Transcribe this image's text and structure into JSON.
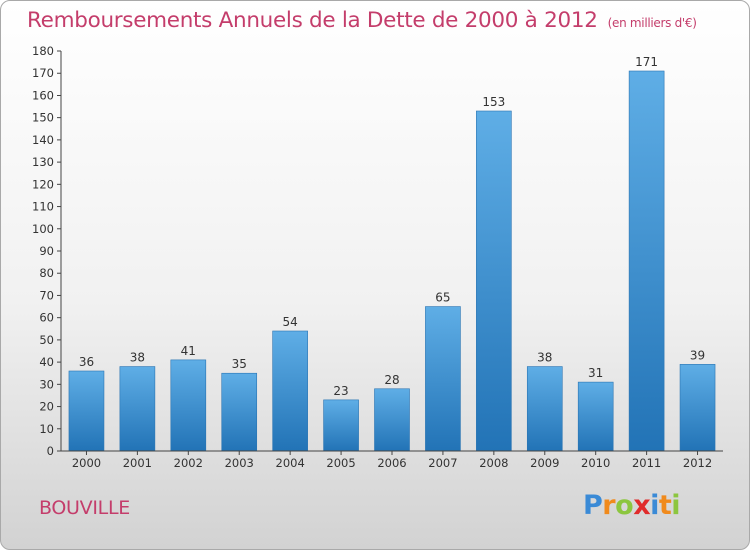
{
  "title": "Remboursements Annuels de la Dette de 2000 à 2012",
  "unit_label": "(en milliers d'€)",
  "location": "BOUVILLE",
  "brand": {
    "letters": [
      "P",
      "r",
      "o",
      "x",
      "i",
      "t",
      "i"
    ],
    "colors": [
      "#3a8ad6",
      "#f08a1c",
      "#8cc63f",
      "#e02b2b",
      "#3a8ad6",
      "#f08a1c",
      "#8cc63f"
    ]
  },
  "colors": {
    "bar_top": "#5faee6",
    "bar_bottom": "#2273b6",
    "accent": "#c43d6b"
  },
  "chart_data": {
    "type": "bar",
    "title": "Remboursements Annuels de la Dette de 2000 à 2012",
    "ylabel": "(en milliers d'€)",
    "xlabel": "",
    "categories": [
      "2000",
      "2001",
      "2002",
      "2003",
      "2004",
      "2005",
      "2006",
      "2007",
      "2008",
      "2009",
      "2010",
      "2011",
      "2012"
    ],
    "values": [
      36,
      38,
      41,
      35,
      54,
      23,
      28,
      65,
      153,
      38,
      31,
      171,
      39
    ],
    "ylim": [
      0,
      180
    ],
    "ytick_step": 10,
    "grid": false
  }
}
